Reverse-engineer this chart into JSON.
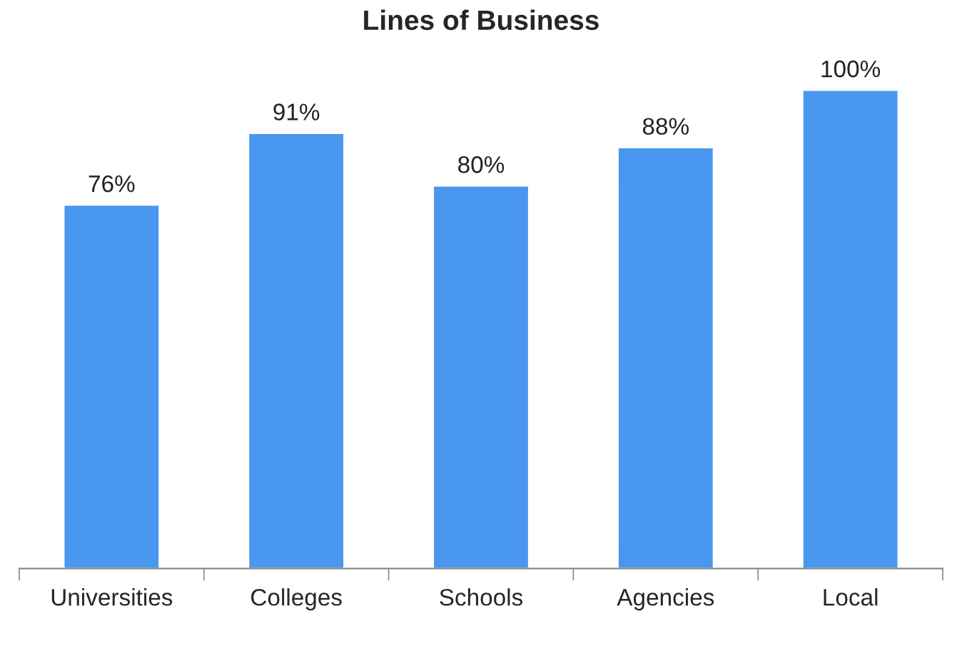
{
  "chart_data": {
    "type": "bar",
    "title": "Lines of Business",
    "categories": [
      "Universities",
      "Colleges",
      "Schools",
      "Agencies",
      "Local"
    ],
    "values": [
      76,
      91,
      80,
      88,
      100
    ],
    "value_labels": [
      "76%",
      "91%",
      "80%",
      "88%",
      "100%"
    ],
    "color": "#4a97f0",
    "grid": false,
    "legend": false
  }
}
